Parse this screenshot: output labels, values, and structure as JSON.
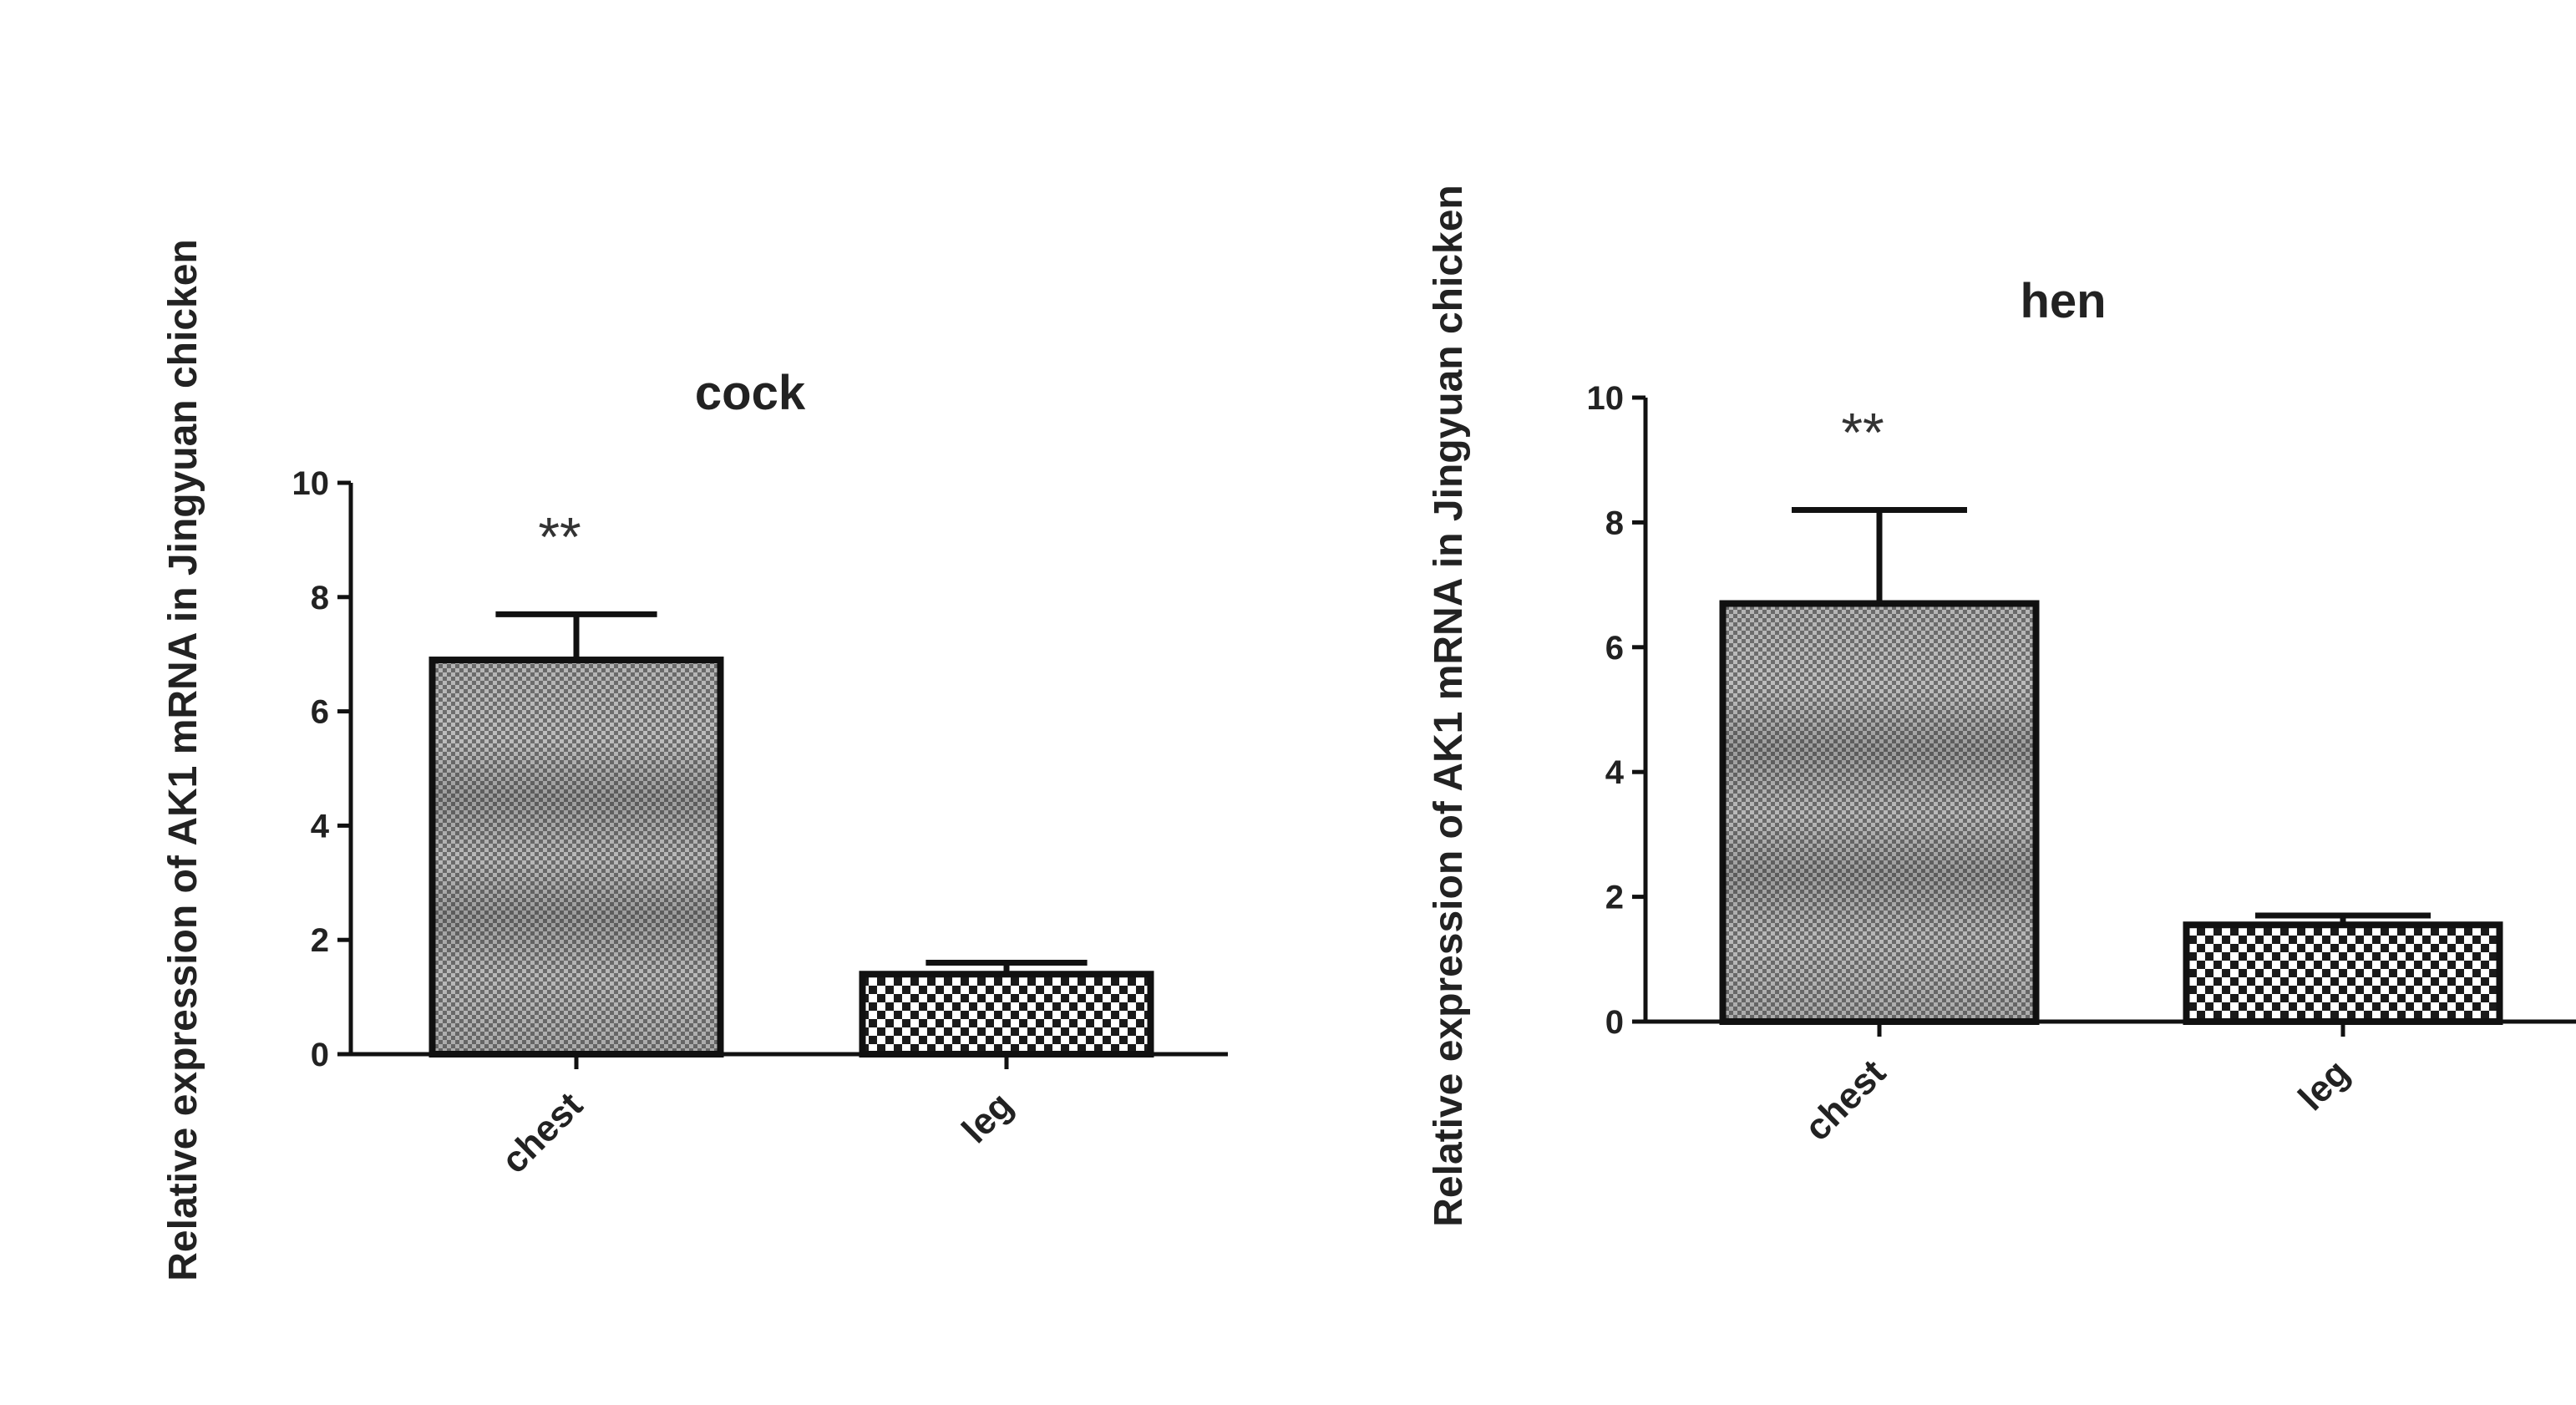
{
  "chart_data": [
    {
      "type": "bar",
      "title": "cock",
      "xlabel": "",
      "ylabel": "Relative expression of AK1 mRNA in Jingyuan chicken",
      "categories": [
        "chest",
        "leg"
      ],
      "values": [
        6.9,
        1.4
      ],
      "errors": [
        0.8,
        0.2
      ],
      "annotations": [
        "**",
        ""
      ],
      "ylim": [
        0,
        10
      ],
      "yticks": [
        0,
        2,
        4,
        6,
        8,
        10
      ],
      "grid": false,
      "legend": "none"
    },
    {
      "type": "bar",
      "title": "hen",
      "xlabel": "",
      "ylabel": "Relative expression of AK1 mRNA in Jingyuan chicken",
      "categories": [
        "chest",
        "leg"
      ],
      "values": [
        6.7,
        1.55
      ],
      "errors": [
        1.5,
        0.15
      ],
      "annotations": [
        "**",
        ""
      ],
      "ylim": [
        0,
        10
      ],
      "yticks": [
        0,
        2,
        4,
        6,
        8,
        10
      ],
      "grid": false,
      "legend": "none"
    }
  ]
}
